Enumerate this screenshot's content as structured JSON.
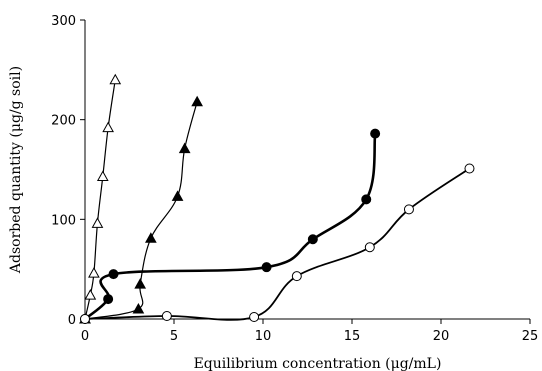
{
  "chart_data": {
    "type": "scatter",
    "title": "",
    "xlabel": "Equilibrium concentration (μg/mL)",
    "ylabel": "Adsorbed quantity (μg/g soil)",
    "xlim": [
      0,
      25
    ],
    "ylim": [
      0,
      300
    ],
    "x_ticks": [
      "0",
      "5",
      "10",
      "15",
      "20",
      "25"
    ],
    "y_ticks": [
      "0",
      "100",
      "200",
      "300"
    ],
    "grid": false,
    "legend": "none",
    "series": [
      {
        "marker": "open-triangle",
        "line_color": "#000000",
        "line_width": "thin",
        "points": [
          [
            0,
            0
          ],
          [
            0.3,
            24
          ],
          [
            0.5,
            46
          ],
          [
            0.7,
            96
          ],
          [
            1.0,
            143
          ],
          [
            1.3,
            192
          ],
          [
            1.7,
            240
          ]
        ]
      },
      {
        "marker": "filled-triangle",
        "line_color": "#000000",
        "line_width": "thin",
        "points": [
          [
            0,
            0
          ],
          [
            3.0,
            10
          ],
          [
            3.1,
            35
          ],
          [
            3.7,
            81
          ],
          [
            5.2,
            123
          ],
          [
            5.6,
            171
          ],
          [
            6.3,
            218
          ]
        ]
      },
      {
        "marker": "filled-circle",
        "line_color": "#000000",
        "line_width": "thick",
        "points": [
          [
            0,
            0
          ],
          [
            1.3,
            20
          ],
          [
            1.6,
            45
          ],
          [
            10.2,
            52
          ],
          [
            12.8,
            80
          ],
          [
            15.8,
            120
          ],
          [
            16.3,
            186
          ]
        ]
      },
      {
        "marker": "open-circle",
        "line_color": "#000000",
        "line_width": "medium",
        "points": [
          [
            0,
            0
          ],
          [
            4.6,
            3
          ],
          [
            9.5,
            2
          ],
          [
            11.9,
            43
          ],
          [
            16.0,
            72
          ],
          [
            18.2,
            110
          ],
          [
            21.6,
            151
          ]
        ]
      }
    ]
  }
}
